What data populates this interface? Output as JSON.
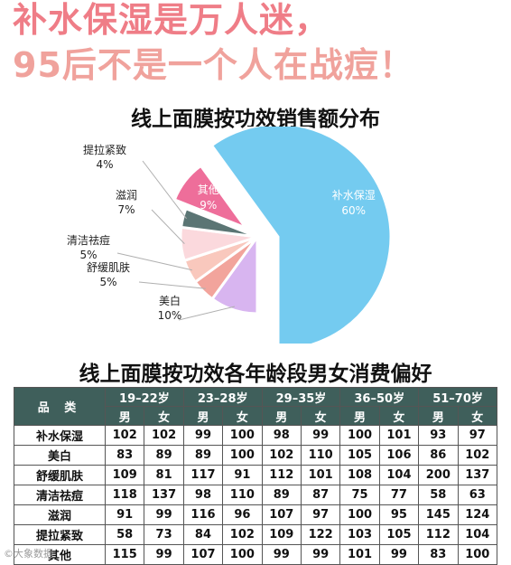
{
  "headline": {
    "line1": "补水保湿是万人迷，",
    "line2": "95后不是一个人在战痘！"
  },
  "chart_data": [
    {
      "type": "pie",
      "title": "线上面膜按功效销售额分布",
      "slices": [
        {
          "label": "补水保湿",
          "value": 60,
          "value_label": "60%",
          "color": "#74cbf0"
        },
        {
          "label": "美白",
          "value": 10,
          "value_label": "10%",
          "color": "#d8b5f0"
        },
        {
          "label": "舒缓肌肤",
          "value": 5,
          "value_label": "5%",
          "color": "#f2a49c"
        },
        {
          "label": "清洁祛痘",
          "value": 5,
          "value_label": "5%",
          "color": "#f9c8bd"
        },
        {
          "label": "滋润",
          "value": 7,
          "value_label": "7%",
          "color": "#fbd9dd"
        },
        {
          "label": "提拉紧致",
          "value": 4,
          "value_label": "4%",
          "color": "#5b7574"
        },
        {
          "label": "其他",
          "value": 9,
          "value_label": "9%",
          "color": "#ee6e9a"
        }
      ]
    },
    {
      "type": "table",
      "title": "线上面膜按功效各年龄段男女消费偏好",
      "corner_header": "品 类",
      "age_groups": [
        "19–22岁",
        "23–28岁",
        "29–35岁",
        "36–50岁",
        "51–70岁"
      ],
      "genders": [
        "男",
        "女"
      ],
      "rows": [
        {
          "category": "补水保湿",
          "values": [
            102,
            102,
            99,
            100,
            98,
            99,
            100,
            101,
            93,
            97
          ]
        },
        {
          "category": "美白",
          "values": [
            83,
            89,
            89,
            100,
            102,
            110,
            105,
            106,
            86,
            102
          ]
        },
        {
          "category": "舒缓肌肤",
          "values": [
            109,
            81,
            117,
            91,
            112,
            101,
            108,
            104,
            200,
            137
          ]
        },
        {
          "category": "清洁祛痘",
          "values": [
            118,
            137,
            98,
            110,
            89,
            87,
            75,
            77,
            58,
            63
          ]
        },
        {
          "category": "滋润",
          "values": [
            91,
            99,
            116,
            96,
            107,
            97,
            100,
            95,
            145,
            124
          ]
        },
        {
          "category": "提拉紧致",
          "values": [
            58,
            73,
            84,
            102,
            109,
            122,
            103,
            105,
            112,
            104
          ]
        },
        {
          "category": "其他",
          "values": [
            115,
            99,
            107,
            100,
            99,
            99,
            101,
            99,
            83,
            100
          ]
        }
      ]
    }
  ],
  "watermark": "©大象数据"
}
